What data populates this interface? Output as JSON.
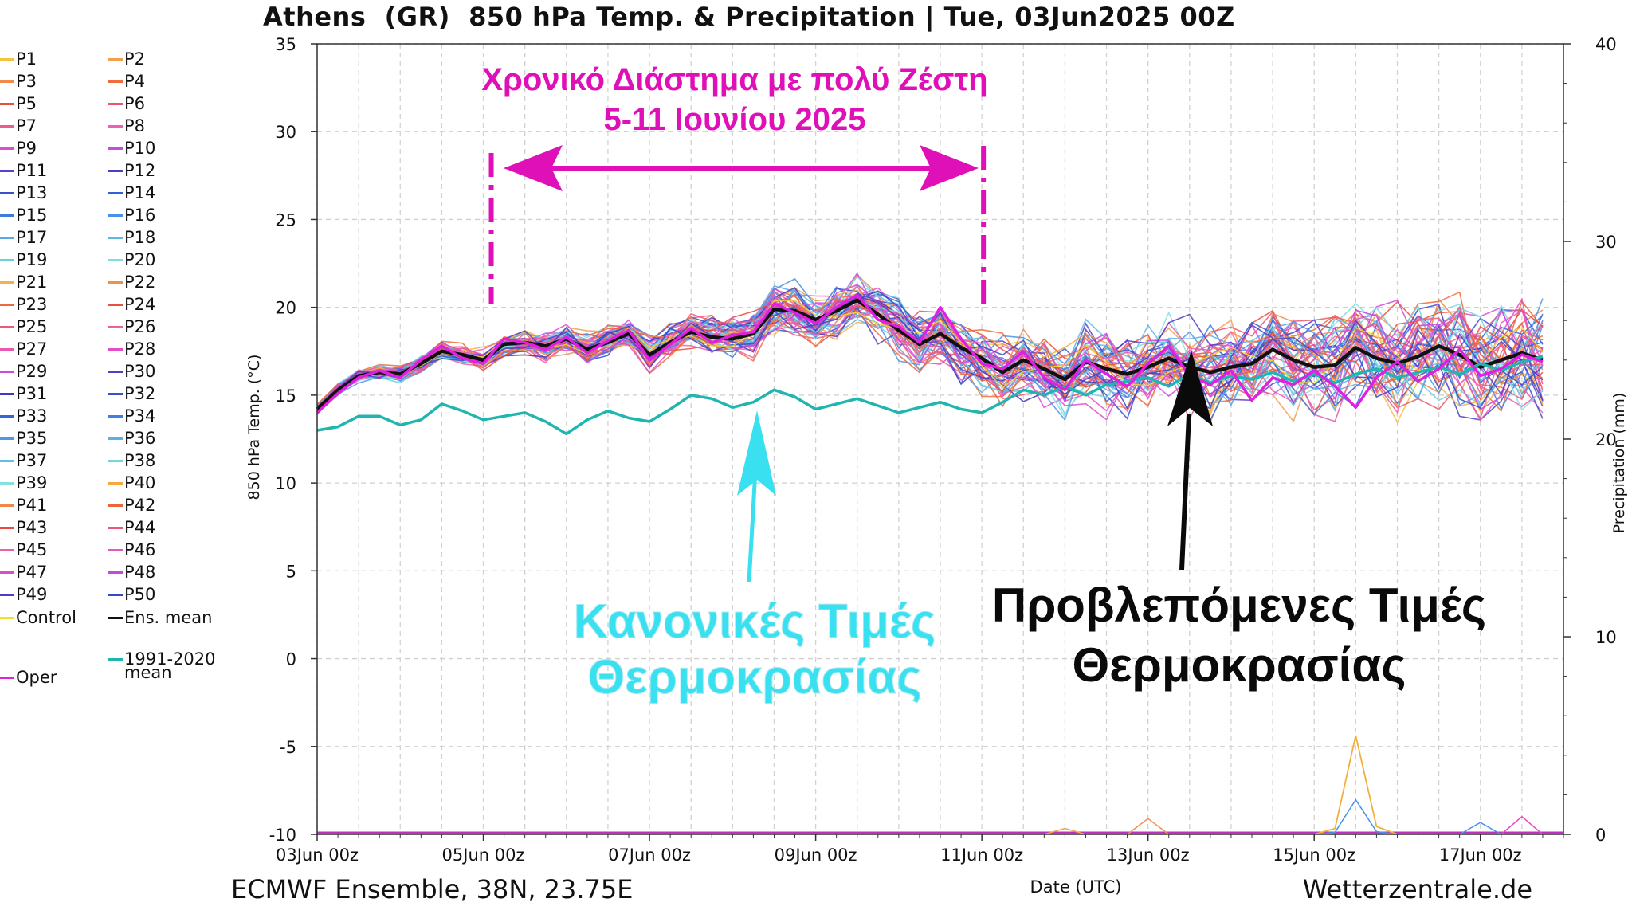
{
  "title": "Athens  (GR)  850 hPa Temp. & Precipitation | Tue, 03Jun2025 00Z",
  "footer": {
    "left": "ECMWF Ensemble, 38N, 23.75E",
    "right": "Wetterzentrale.de"
  },
  "legend": {
    "members": [
      {
        "label": "P1",
        "color": "#f5c242"
      },
      {
        "label": "P2",
        "color": "#f0a050"
      },
      {
        "label": "P3",
        "color": "#f08a4b"
      },
      {
        "label": "P4",
        "color": "#ee6d3a"
      },
      {
        "label": "P5",
        "color": "#e8503a"
      },
      {
        "label": "P6",
        "color": "#e8566a"
      },
      {
        "label": "P7",
        "color": "#ee5a8a"
      },
      {
        "label": "P8",
        "color": "#ef5fb0"
      },
      {
        "label": "P9",
        "color": "#e34ad0"
      },
      {
        "label": "P10",
        "color": "#c04ee0"
      },
      {
        "label": "P11",
        "color": "#5b3fd0"
      },
      {
        "label": "P12",
        "color": "#4a3fc8"
      },
      {
        "label": "P13",
        "color": "#3a4ed0"
      },
      {
        "label": "P14",
        "color": "#3060d8"
      },
      {
        "label": "P15",
        "color": "#3d7be0"
      },
      {
        "label": "P16",
        "color": "#4a90e8"
      },
      {
        "label": "P17",
        "color": "#5aa8e8"
      },
      {
        "label": "P18",
        "color": "#60b8e0"
      },
      {
        "label": "P19",
        "color": "#6ccfe0"
      },
      {
        "label": "P20",
        "color": "#7fdde0"
      },
      {
        "label": "P21",
        "color": "#f5b048"
      },
      {
        "label": "P22",
        "color": "#f09050"
      },
      {
        "label": "P23",
        "color": "#ee6a3a"
      },
      {
        "label": "P24",
        "color": "#e8503e"
      },
      {
        "label": "P25",
        "color": "#ea5a70"
      },
      {
        "label": "P26",
        "color": "#ec6298"
      },
      {
        "label": "P27",
        "color": "#e85ab0"
      },
      {
        "label": "P28",
        "color": "#e24ec8"
      },
      {
        "label": "P29",
        "color": "#cc4ae0"
      },
      {
        "label": "P30",
        "color": "#5040c8"
      },
      {
        "label": "P31",
        "color": "#4038c0"
      },
      {
        "label": "P32",
        "color": "#3a50d0"
      },
      {
        "label": "P33",
        "color": "#3466d8"
      },
      {
        "label": "P34",
        "color": "#3f80e0"
      },
      {
        "label": "P35",
        "color": "#4e98e8"
      },
      {
        "label": "P36",
        "color": "#5cb0e8"
      },
      {
        "label": "P37",
        "color": "#62c0e0"
      },
      {
        "label": "P38",
        "color": "#74d4e0"
      },
      {
        "label": "P39",
        "color": "#86e0e0"
      },
      {
        "label": "P40",
        "color": "#f5a840"
      },
      {
        "label": "P41",
        "color": "#f0884a"
      },
      {
        "label": "P42",
        "color": "#ec643a"
      },
      {
        "label": "P43",
        "color": "#e84a40"
      },
      {
        "label": "P44",
        "color": "#ea5878"
      },
      {
        "label": "P45",
        "color": "#ec60a0"
      },
      {
        "label": "P46",
        "color": "#e658b8"
      },
      {
        "label": "P47",
        "color": "#de4ccc"
      },
      {
        "label": "P48",
        "color": "#c648e0"
      },
      {
        "label": "P49",
        "color": "#4c3ec8"
      },
      {
        "label": "P50",
        "color": "#3848c8"
      }
    ],
    "control": {
      "label": "Control",
      "color": "#f5e020"
    },
    "ens_mean": {
      "label": "Ens. mean",
      "color": "#111111"
    },
    "climate": {
      "label_line1": "1991-2020",
      "label_line2": "mean",
      "color": "#1fb5b0"
    },
    "oper": {
      "label": "Oper",
      "color": "#e020e0"
    }
  },
  "annotations": {
    "period_title_line1": "Χρονικό Διάστημα με πολύ Ζέστη",
    "period_title_line2": "5-11 Ιουνίου 2025",
    "normal_line1": "Κανονικές Τιμές",
    "normal_line2": "Θερμοκρασίας",
    "forecast_line1": "Προβλεπόμενες Τιμές",
    "forecast_line2": "Θερμοκρασίας",
    "colors": {
      "period": "#e010b8",
      "normal": "#38e0f0",
      "forecast": "#0a0a0a"
    }
  },
  "chart_data": {
    "type": "line",
    "title": "Athens  (GR)  850 hPa Temp. & Precipitation | Tue, 03Jun2025 00Z",
    "xlabel": "Date (UTC)",
    "ylabel": "850 hPa Temp. (°C)",
    "y2label": "Precipitation (mm)",
    "ylim": [
      -10,
      35
    ],
    "y2lim": [
      0,
      40
    ],
    "yticks": [
      -10,
      -5,
      0,
      5,
      10,
      15,
      20,
      25,
      30,
      35
    ],
    "y2ticks": [
      0,
      10,
      20,
      30,
      40
    ],
    "xlim": [
      0,
      15
    ],
    "xticks": [
      {
        "x": 0,
        "label": "03Jun 00z"
      },
      {
        "x": 2,
        "label": "05Jun 00z"
      },
      {
        "x": 4,
        "label": "07Jun 00z"
      },
      {
        "x": 6,
        "label": "09Jun 00z"
      },
      {
        "x": 8,
        "label": "11Jun 00z"
      },
      {
        "x": 10,
        "label": "13Jun 00z"
      },
      {
        "x": 12,
        "label": "15Jun 00z"
      },
      {
        "x": 14,
        "label": "17Jun 00z"
      }
    ],
    "grid": true,
    "legend_position": "left",
    "x_step_days": 0.25,
    "series": [
      {
        "name": "Ens. mean",
        "color": "#111111",
        "values": [
          14.2,
          15.3,
          16.1,
          16.3,
          16.2,
          16.8,
          17.5,
          17.3,
          17.0,
          17.9,
          18.0,
          17.8,
          18.2,
          17.6,
          18.0,
          18.5,
          17.3,
          18.0,
          18.6,
          18.3,
          18.2,
          18.5,
          19.9,
          19.8,
          19.3,
          19.8,
          20.4,
          19.6,
          18.7,
          17.9,
          18.5,
          17.7,
          17.1,
          16.3,
          17.0,
          16.5,
          15.9,
          16.9,
          16.5,
          16.2,
          16.6,
          17.1,
          16.6,
          16.3,
          16.6,
          16.8,
          17.6,
          17.0,
          16.6,
          16.7,
          17.7,
          17.1,
          16.8,
          17.2,
          17.8,
          17.3,
          16.6,
          17.0,
          17.4,
          17.0
        ]
      },
      {
        "name": "1991-2020 mean",
        "color": "#1fb5b0",
        "values": [
          13.0,
          13.2,
          13.8,
          13.8,
          13.3,
          13.6,
          14.5,
          14.1,
          13.6,
          13.8,
          14.0,
          13.5,
          12.8,
          13.6,
          14.1,
          13.7,
          13.5,
          14.2,
          15.0,
          14.8,
          14.3,
          14.6,
          15.3,
          14.9,
          14.2,
          14.5,
          14.8,
          14.4,
          14.0,
          14.3,
          14.6,
          14.2,
          14.0,
          14.6,
          15.3,
          15.0,
          15.5,
          15.0,
          15.6,
          15.8,
          16.0,
          15.5,
          16.2,
          15.7,
          16.1,
          15.9,
          16.3,
          15.8,
          16.2,
          15.7,
          16.2,
          16.5,
          16.0,
          16.3,
          16.6,
          16.2,
          16.8,
          16.4,
          16.9,
          17.2
        ]
      },
      {
        "name": "Oper",
        "color": "#e020e0",
        "values": [
          14.0,
          15.1,
          16.0,
          16.4,
          16.0,
          17.0,
          17.8,
          17.1,
          16.8,
          18.2,
          18.0,
          17.6,
          18.3,
          17.4,
          18.1,
          18.7,
          17.0,
          17.9,
          18.8,
          18.0,
          18.4,
          18.6,
          20.2,
          19.7,
          19.1,
          20.0,
          20.7,
          19.3,
          18.9,
          18.0,
          20.0,
          18.2,
          16.8,
          16.5,
          17.5,
          16.0,
          15.3,
          17.0,
          16.2,
          15.5,
          16.8,
          17.8,
          16.1,
          15.6,
          16.4,
          14.7,
          16.0,
          15.6,
          16.4,
          15.5,
          14.3,
          16.0,
          16.9,
          15.8,
          16.5,
          17.6,
          16.1,
          16.5,
          17.3,
          16.9
        ]
      }
    ],
    "precipitation_note": "ensemble precipitation near 0 mm, isolated spike ~5 mm near 15Jun 18z"
  }
}
